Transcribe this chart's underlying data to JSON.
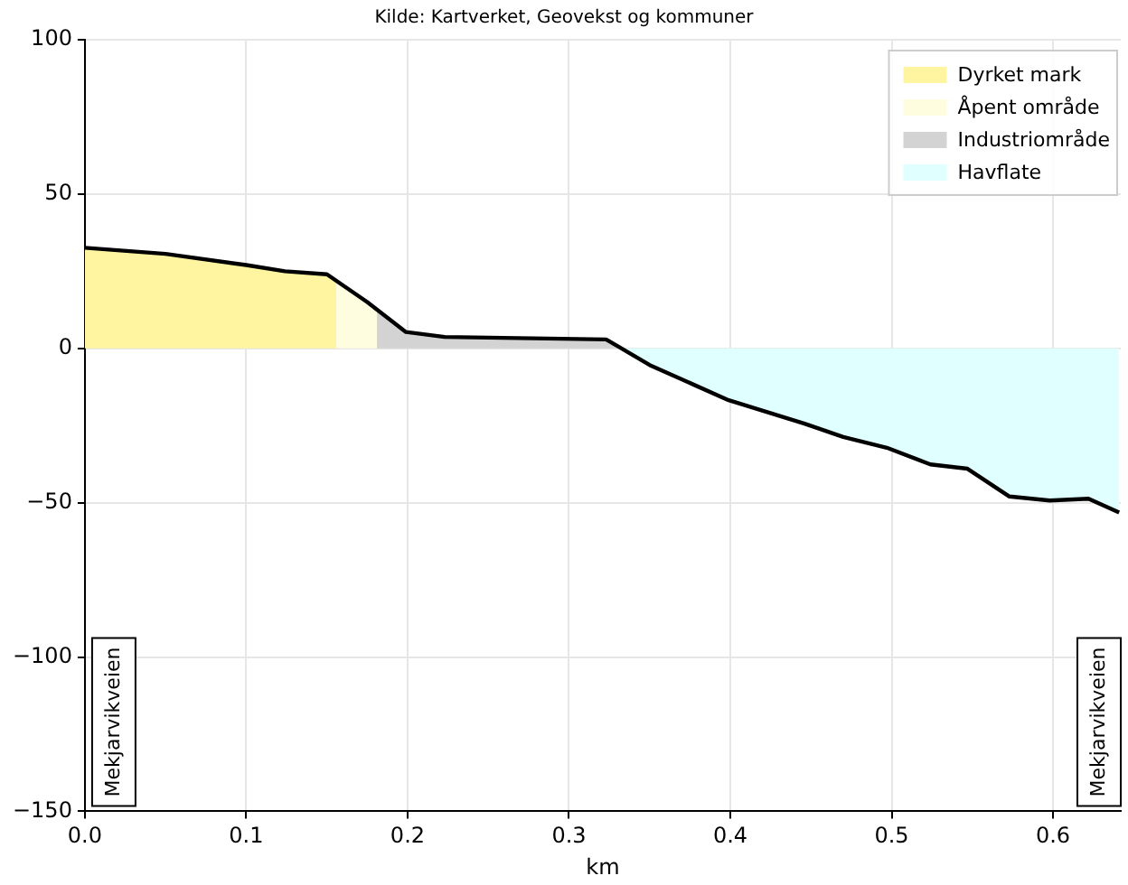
{
  "chart_data": {
    "type": "line",
    "title": "Kilde: Kartverket, Geovekst og kommuner",
    "xlabel": "km",
    "xlim": [
      0,
      0.642
    ],
    "xticks": [
      {
        "value": 0,
        "label": "0.0"
      },
      0.1,
      0.2,
      0.3,
      0.4,
      0.5,
      0.6
    ],
    "ylim": [
      -150,
      100
    ],
    "yticks": [
      {
        "value": -150,
        "label": "−150"
      },
      {
        "value": -100,
        "label": "−100"
      },
      {
        "value": -50,
        "label": "−50"
      },
      0,
      50,
      100
    ],
    "grid": true,
    "legend": "top right",
    "marker": "none",
    "line_style": "solid",
    "series": [
      {
        "type": "area",
        "name": "Dyrket mark",
        "color": "#fff5a0",
        "x": [
          0,
          0.05,
          0.1,
          0.124,
          0.15,
          0.156
        ],
        "values": [
          32.6,
          30.6,
          27,
          25,
          24,
          22
        ]
      },
      {
        "type": "area",
        "name": "Åpent område",
        "color": "#fffde0",
        "x": [
          0.156,
          0.175,
          0.181
        ],
        "values": [
          22,
          15,
          12
        ]
      },
      {
        "type": "area",
        "name": "Industriområde",
        "color": "#d3d3d3",
        "x": [
          0.181,
          0.199,
          0.223,
          0.323,
          0.325,
          0.33
        ],
        "values": [
          12,
          5.3,
          3.7,
          2.9,
          2.3,
          0
        ]
      },
      {
        "type": "area",
        "name": "Havflate",
        "color": "#e0ffff",
        "x": [
          0.33,
          0.35,
          0.399,
          0.446,
          0.47,
          0.497,
          0.524,
          0.547,
          0.573,
          0.598,
          0.622,
          0.641
        ],
        "values": [
          0,
          -5.4,
          -16.8,
          -24.4,
          -28.7,
          -32.2,
          -37.6,
          -39,
          -48,
          -49.3,
          -48.7,
          -53.2
        ]
      },
      {
        "color": "#000000",
        "x": [
          0,
          0.05,
          0.1,
          0.124,
          0.15,
          0.175,
          0.199,
          0.223,
          0.323,
          0.325,
          0.35,
          0.399,
          0.446,
          0.47,
          0.497,
          0.524,
          0.547,
          0.573,
          0.598,
          0.622,
          0.641
        ],
        "values": [
          32.6,
          30.6,
          27,
          25,
          24,
          15,
          5.3,
          3.7,
          2.9,
          2.3,
          -5.4,
          -16.8,
          -24.4,
          -28.7,
          -32.2,
          -37.6,
          -39,
          -48,
          -49.3,
          -48.7,
          -53.2
        ]
      }
    ],
    "annotations": [
      "Mekjarvikveien",
      "Mekjarvikveien"
    ]
  }
}
